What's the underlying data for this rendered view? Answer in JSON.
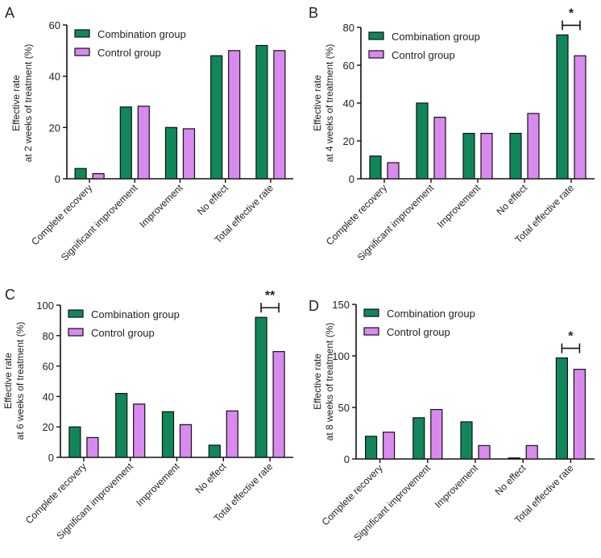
{
  "colors": {
    "combination": "#11865a",
    "control": "#d88aee",
    "axis": "#111111"
  },
  "chart_data": [
    {
      "panel": "A",
      "type": "bar",
      "ylabel_lines": [
        "Effective rate",
        "at 2 weeks of treatment (%)"
      ],
      "categories": [
        "Complete recovery",
        "Significant improvement",
        "Improvement",
        "No effect",
        "Total effective rate"
      ],
      "series": [
        {
          "name": "Combination group",
          "values": [
            4,
            28,
            20,
            48,
            52
          ]
        },
        {
          "name": "Control group",
          "values": [
            2,
            28.3,
            19.5,
            50,
            50
          ]
        }
      ],
      "ylim": [
        0,
        60
      ],
      "yticks": [
        "0",
        "20",
        "40",
        "60"
      ],
      "significance": []
    },
    {
      "panel": "B",
      "type": "bar",
      "ylabel_lines": [
        "Effective rate",
        "at 4 weeks of treatment (%)"
      ],
      "categories": [
        "Complete recovery",
        "Significant improvement",
        "Improvement",
        "No effect",
        "Total effective rate"
      ],
      "series": [
        {
          "name": "Combination group",
          "values": [
            12,
            40,
            24,
            24,
            76
          ]
        },
        {
          "name": "Control group",
          "values": [
            8.5,
            32.5,
            24,
            34.5,
            65
          ]
        }
      ],
      "ylim": [
        0,
        80
      ],
      "yticks": [
        "0",
        "20",
        "40",
        "60",
        "80"
      ],
      "significance": [
        {
          "category_index": 4,
          "label": "*"
        }
      ]
    },
    {
      "panel": "C",
      "type": "bar",
      "ylabel_lines": [
        "Effective rate",
        "at 6 weeks of treatment (%)"
      ],
      "categories": [
        "Complete recovery",
        "Significant improvement",
        "Improvement",
        "No effect",
        "Total effective rate"
      ],
      "series": [
        {
          "name": "Combination group",
          "values": [
            20,
            42,
            30,
            8,
            92
          ]
        },
        {
          "name": "Control group",
          "values": [
            13,
            35,
            21.5,
            30.5,
            69.5
          ]
        }
      ],
      "ylim": [
        0,
        100
      ],
      "yticks": [
        "0",
        "20",
        "40",
        "60",
        "80",
        "100"
      ],
      "significance": [
        {
          "category_index": 4,
          "label": "**"
        }
      ]
    },
    {
      "panel": "D",
      "type": "bar",
      "ylabel_lines": [
        "Effective rate",
        "at 8 weeks of treatment (%)"
      ],
      "categories": [
        "Complete recovery",
        "Significant improvement",
        "Improvement",
        "No effect",
        "Total effective rate"
      ],
      "series": [
        {
          "name": "Combination group",
          "values": [
            22,
            40,
            36,
            1,
            98
          ]
        },
        {
          "name": "Control group",
          "values": [
            26,
            48,
            13,
            13,
            87
          ]
        }
      ],
      "ylim": [
        0,
        150
      ],
      "yticks": [
        "0",
        "50",
        "100",
        "150"
      ],
      "significance": [
        {
          "category_index": 4,
          "label": "*"
        }
      ]
    }
  ]
}
